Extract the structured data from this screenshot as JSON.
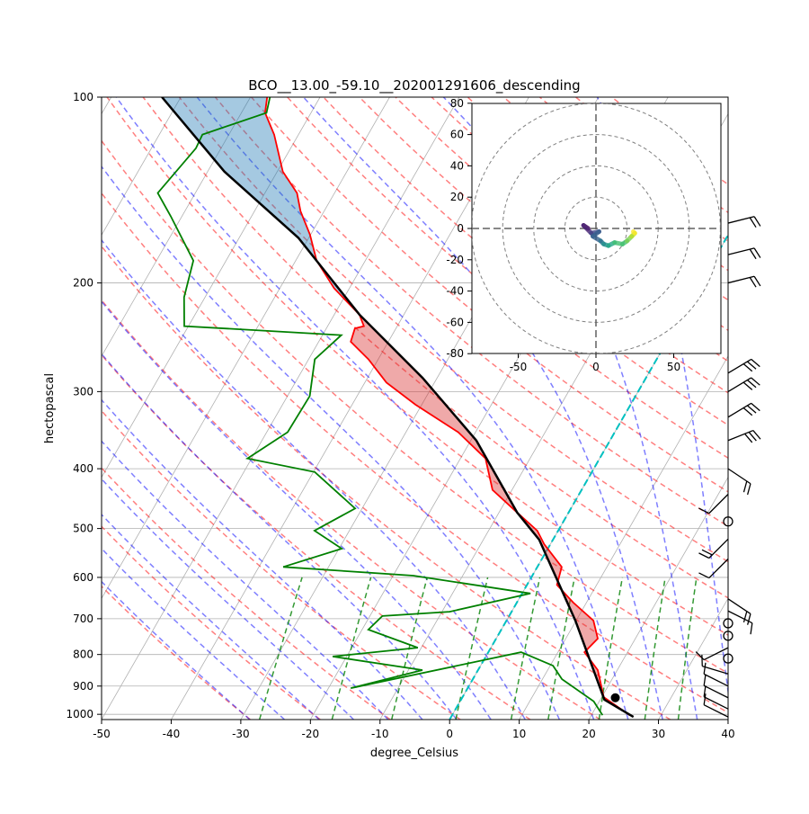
{
  "chart_data": {
    "type": "line",
    "subtype": "skew-t log-p",
    "title": "BCO__13.00_-59.10__202001291606_descending",
    "xlabel": "degree_Celsius",
    "ylabel": "hectopascal",
    "xlim": [
      -50,
      40
    ],
    "ylim": [
      1020,
      100
    ],
    "xticks": [
      "-50",
      "-40",
      "-30",
      "-20",
      "-10",
      "0",
      "10",
      "20",
      "30",
      "40"
    ],
    "yticks": [
      "100",
      "200",
      "300",
      "400",
      "500",
      "600",
      "700",
      "800",
      "900",
      "1000"
    ],
    "series": [
      {
        "name": "temperature",
        "color": "#ff0000",
        "p": [
          1003,
          938,
          848,
          793,
          754,
          705,
          659,
          617,
          577,
          530,
          504,
          471,
          433,
          385,
          349,
          315,
          290,
          266,
          249,
          237,
          235,
          225,
          204,
          184,
          167,
          153,
          143,
          132,
          115,
          106,
          100
        ],
        "T": [
          25.5,
          20.3,
          17.2,
          13.8,
          14.6,
          12.5,
          8.1,
          4.3,
          3.5,
          -0.9,
          -3.0,
          -7.4,
          -12.8,
          -16.4,
          -22.5,
          -30.9,
          -36.9,
          -41.4,
          -45.4,
          -45.9,
          -44.8,
          -46.4,
          -52.2,
          -57.0,
          -60.1,
          -63.4,
          -65.4,
          -69.2,
          -73.5,
          -76.6,
          -77.6
        ]
      },
      {
        "name": "dewpoint",
        "color": "#008000",
        "p": [
          1003,
          953,
          877,
          834,
          793,
          907,
          848,
          806,
          780,
          729,
          693,
          682,
          637,
          596,
          577,
          539,
          504,
          464,
          405,
          385,
          349,
          305,
          266,
          243,
          235,
          211,
          184,
          156,
          143,
          121,
          115,
          106,
          100
        ],
        "T": [
          21.6,
          19.2,
          12.8,
          10.4,
          4.7,
          -16.8,
          -8,
          -22,
          -10.5,
          -19.1,
          -18.2,
          -8.9,
          1.2,
          -17.1,
          -36.5,
          -29.6,
          -35,
          -31,
          -39.8,
          -50.6,
          -47,
          -46.8,
          -49.1,
          -47.3,
          -70.6,
          -73,
          -74.7,
          -81.6,
          -85.4,
          -83.6,
          -83.8,
          -76.4,
          -77.2
        ]
      },
      {
        "name": "parcel",
        "color": "#000000",
        "p": [
          1010,
          947,
          705,
          521,
          471,
          360,
          285,
          225,
          169,
          132,
          100
        ],
        "T": [
          26.2,
          20.6,
          9.9,
          -2.0,
          -7.4,
          -19.2,
          -32.1,
          -46.4,
          -61.5,
          -77.6,
          -92.7
        ]
      }
    ],
    "lcl": {
      "p": 940,
      "T": 22.0
    },
    "cape_color": "#a0c4e0",
    "cin_color": "#f0a8a8",
    "zero_isotherm_color": "#00c0c0",
    "wind_barbs": [
      {
        "p": 160,
        "u": -20,
        "v": -5
      },
      {
        "p": 180,
        "u": -20,
        "v": -5
      },
      {
        "p": 200,
        "u": -20,
        "v": -5
      },
      {
        "p": 280,
        "u": -25,
        "v": -15
      },
      {
        "p": 300,
        "u": -25,
        "v": -15
      },
      {
        "p": 330,
        "u": -25,
        "v": -15
      },
      {
        "p": 360,
        "u": -25,
        "v": -10
      },
      {
        "p": 400,
        "u": -15,
        "v": 10
      },
      {
        "p": 440,
        "u": 10,
        "v": 10
      },
      {
        "p": 487,
        "u": 0,
        "v": 0
      },
      {
        "p": 520,
        "u": 15,
        "v": 15
      },
      {
        "p": 560,
        "u": 10,
        "v": 10
      },
      {
        "p": 650,
        "u": -15,
        "v": 10
      },
      {
        "p": 680,
        "u": -10,
        "v": 5
      },
      {
        "p": 712,
        "u": 0,
        "v": 0
      },
      {
        "p": 746,
        "u": 0,
        "v": 0
      },
      {
        "p": 780,
        "u": 10,
        "v": 5
      },
      {
        "p": 812,
        "u": 0,
        "v": 0
      },
      {
        "p": 860,
        "u": 10,
        "v": -3
      },
      {
        "p": 900,
        "u": 10,
        "v": -5
      },
      {
        "p": 940,
        "u": 10,
        "v": -5
      },
      {
        "p": 980,
        "u": 10,
        "v": -5
      },
      {
        "p": 1010,
        "u": 10,
        "v": -5
      }
    ],
    "hodograph": {
      "xlim": [
        -80,
        80
      ],
      "ylim": [
        -80,
        80
      ],
      "xticks": [
        "-50",
        "0",
        "50"
      ],
      "yticks": [
        "80",
        "60",
        "40",
        "20",
        "0",
        "-20",
        "-40",
        "-60",
        "-80"
      ],
      "rings": [
        20,
        40,
        60,
        80
      ],
      "u": [
        -5,
        -8,
        -3,
        2,
        -2,
        3,
        5,
        8,
        12,
        17,
        20,
        23,
        25,
        24
      ],
      "v": [
        0,
        2,
        -3,
        -2,
        -5,
        -8,
        -10,
        -11,
        -9,
        -10,
        -8,
        -5,
        -3,
        -2
      ]
    }
  }
}
